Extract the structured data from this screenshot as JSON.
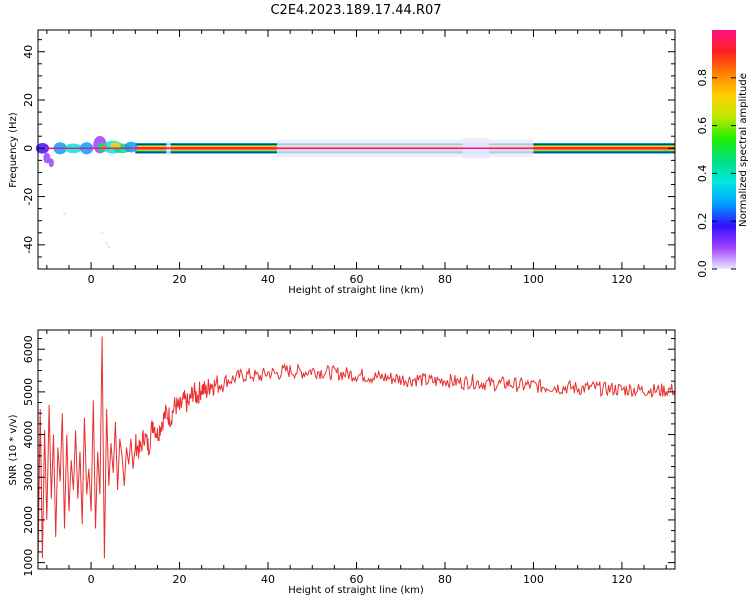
{
  "title": "C2E4.2023.189.17.44.R07",
  "chart_data": [
    {
      "type": "heatmap",
      "xlabel": "Height of straight line (km)",
      "ylabel": "Frequency (Hz)",
      "xlim": [
        -12,
        132
      ],
      "ylim": [
        -50,
        49
      ],
      "xticks": [
        0,
        20,
        40,
        60,
        80,
        100,
        120
      ],
      "yticks": [
        40,
        20,
        0,
        -20,
        -40
      ],
      "colorbar": {
        "label": "Normalized spectral amplitude",
        "range": [
          0,
          1
        ],
        "ticks": [
          "0.0",
          "0.2",
          "0.4",
          "0.6",
          "0.8"
        ],
        "colors": [
          "#e8e8ff",
          "#a040ff",
          "#3010ff",
          "#00a0ff",
          "#00e8e0",
          "#00e080",
          "#20f000",
          "#c0e800",
          "#ffd000",
          "#ff8000",
          "#ff2020",
          "#ff1080"
        ]
      },
      "features": {
        "main_band_frequency_hz": 0,
        "main_band_amplitude": 0.85
      }
    },
    {
      "type": "line",
      "xlabel": "Height of straight line (km)",
      "ylabel": "SNR (10 * v/v)",
      "xlim": [
        -12,
        132
      ],
      "ylim": [
        850,
        6450
      ],
      "xticks": [
        0,
        20,
        40,
        60,
        80,
        100,
        120
      ],
      "yticks": [
        1000,
        2000,
        3000,
        4000,
        5000,
        6000
      ],
      "color": "#e83030",
      "series": [
        {
          "x": [
            -12,
            -11.5,
            -11,
            -10.5,
            -10,
            -9.5,
            -9,
            -8.5,
            -8,
            -7.5,
            -7,
            -6.5,
            -6,
            -5.5,
            -5,
            -4.5,
            -4,
            -3.5,
            -3,
            -2.5,
            -2,
            -1.5,
            -1,
            -0.5,
            0,
            0.5,
            1,
            1.5,
            2,
            2.5,
            3,
            3.5,
            4,
            4.5,
            5,
            5.5,
            6,
            6.5,
            7,
            7.5,
            8,
            8.5,
            9,
            9.5,
            10,
            11,
            12,
            13,
            14,
            15,
            16,
            17,
            18,
            19,
            20,
            21,
            22,
            23,
            24,
            25,
            26,
            27,
            28,
            30,
            32,
            34,
            36,
            38,
            40,
            42,
            44,
            46,
            48,
            50,
            52,
            54,
            56,
            58,
            60,
            62,
            64,
            66,
            68,
            70,
            72,
            74,
            76,
            78,
            80,
            82,
            84,
            86,
            88,
            90,
            92,
            94,
            96,
            98,
            100,
            102,
            104,
            106,
            108,
            110,
            112,
            114,
            116,
            118,
            120,
            122,
            124,
            126,
            128,
            130,
            132
          ],
          "y": [
            1000,
            4600,
            1100,
            4100,
            2000,
            4700,
            2500,
            4000,
            1600,
            3700,
            2900,
            4500,
            1800,
            4000,
            2200,
            3400,
            2700,
            4100,
            2500,
            3600,
            1900,
            4400,
            2600,
            3200,
            2200,
            4800,
            1800,
            3600,
            2600,
            6300,
            1100,
            4600,
            2800,
            3800,
            3100,
            4300,
            2700,
            3900,
            3500,
            2800,
            3700,
            3300,
            3900,
            3200,
            3800,
            3600,
            4000,
            3700,
            4300,
            4000,
            4300,
            4500,
            4400,
            4700,
            4600,
            4800,
            4700,
            5000,
            4900,
            5100,
            5000,
            5200,
            5150,
            5250,
            5300,
            5380,
            5400,
            5350,
            5450,
            5420,
            5500,
            5480,
            5460,
            5500,
            5470,
            5450,
            5430,
            5420,
            5400,
            5380,
            5350,
            5340,
            5320,
            5300,
            5280,
            5300,
            5260,
            5250,
            5280,
            5240,
            5220,
            5250,
            5210,
            5200,
            5180,
            5200,
            5170,
            5150,
            5150,
            5120,
            5130,
            5100,
            5110,
            5080,
            5090,
            5100,
            5060,
            5070,
            5050,
            5060,
            5040,
            5050,
            5030,
            5040,
            5050
          ]
        }
      ]
    }
  ]
}
